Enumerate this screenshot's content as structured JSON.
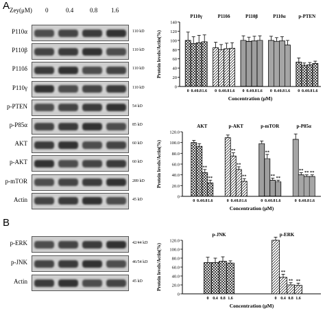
{
  "panels": {
    "A": "A",
    "B": "B"
  },
  "panelA": {
    "zey_label": "Zey(μM)",
    "doses": [
      "0",
      "0.4",
      "0.8",
      "1.6"
    ],
    "blots": [
      {
        "name": "P110α",
        "kd": "110 kD"
      },
      {
        "name": "P110β",
        "kd": "110 kD"
      },
      {
        "name": "P110δ",
        "kd": "110 kD"
      },
      {
        "name": "P110γ",
        "kd": "110 kD"
      },
      {
        "name": "p-PTEN",
        "kd": "54 kD"
      },
      {
        "name": "p-P85α",
        "kd": "85 kD"
      },
      {
        "name": "AKT",
        "kd": "60 kD"
      },
      {
        "name": "p-AKT",
        "kd": "60 kD"
      },
      {
        "name": "p-mTOR",
        "kd": "289 kD"
      },
      {
        "name": "Actin",
        "kd": "45 kD"
      }
    ]
  },
  "panelB": {
    "blots": [
      {
        "name": "p-ERK",
        "kd": "42/44 kD"
      },
      {
        "name": "p-JNK",
        "kd": "46/54 kD"
      },
      {
        "name": "Actin",
        "kd": "45 kD"
      }
    ]
  },
  "colors": {
    "bar": "#ffffff",
    "stroke": "#000000",
    "band_dark": "#1a1a1a",
    "band_bg": "#d9d9d9"
  },
  "chart_data": [
    {
      "type": "bar",
      "ylabel": "Protein levels/Actin(%)",
      "xlabel": "Concentration (μM)",
      "ylim": [
        0,
        140
      ],
      "yticks": [
        0,
        20,
        40,
        60,
        80,
        100,
        120,
        140
      ],
      "groups": [
        "P110γ",
        "P110δ",
        "P110β",
        "P110α",
        "p-PTEN"
      ],
      "categories": [
        "0",
        "0.4",
        "0.8",
        "1.6"
      ],
      "series": [
        {
          "values": [
            100,
            93,
            95,
            97
          ],
          "errors": [
            18,
            15,
            16,
            15
          ]
        },
        {
          "values": [
            84,
            80,
            82,
            83
          ],
          "errors": [
            12,
            11,
            12,
            12
          ]
        },
        {
          "values": [
            100,
            98,
            99,
            100
          ],
          "errors": [
            10,
            9,
            10,
            10
          ]
        },
        {
          "values": [
            100,
            98,
            99,
            90
          ],
          "errors": [
            9,
            8,
            9,
            10
          ]
        },
        {
          "values": [
            53,
            46,
            47,
            50
          ],
          "errors": [
            9,
            5,
            5,
            5
          ]
        }
      ]
    },
    {
      "type": "bar",
      "ylabel": "Protein levels/Actin(%)",
      "xlabel": "Concentration (μM)",
      "ylim": [
        0,
        120
      ],
      "yticks": [
        "0",
        "20.0",
        "40.0",
        "60.0",
        "80.0",
        "100.0",
        "120.0"
      ],
      "groups": [
        "AKT",
        "p-AKT",
        "p-mTOR",
        "p-P85α"
      ],
      "categories": [
        "0",
        "0.4",
        "0.8",
        "1.6"
      ],
      "series": [
        {
          "values": [
            100,
            93,
            44,
            25
          ],
          "errors": [
            4,
            5,
            6,
            5
          ],
          "sig": [
            "",
            "",
            "**",
            "**"
          ]
        },
        {
          "values": [
            109,
            75,
            50,
            28
          ],
          "errors": [
            5,
            6,
            5,
            5
          ],
          "sig": [
            "",
            "**",
            "**",
            "**"
          ]
        },
        {
          "values": [
            98,
            70,
            30,
            27
          ],
          "errors": [
            5,
            8,
            4,
            3
          ],
          "sig": [
            "",
            "**",
            "**",
            "**"
          ]
        },
        {
          "values": [
            106,
            40,
            37,
            37
          ],
          "errors": [
            10,
            4,
            3,
            3
          ],
          "sig": [
            "",
            "**",
            "**",
            "**"
          ]
        }
      ]
    },
    {
      "type": "bar",
      "ylabel": "Protein levels/Actin(%)",
      "xlabel": "Concentration (μM)",
      "ylim": [
        0,
        120
      ],
      "yticks": [
        "0",
        "20.0",
        "40.0",
        "60.0",
        "80.0",
        "100.0",
        "120.0"
      ],
      "groups": [
        "p-JNK",
        "p-ERK"
      ],
      "categories": [
        "0",
        "0.4",
        "0.8",
        "1.6"
      ],
      "series": [
        {
          "values": [
            70,
            70,
            73,
            69
          ],
          "errors": [
            12,
            10,
            10,
            5
          ],
          "sig": [
            "",
            "",
            "",
            ""
          ]
        },
        {
          "values": [
            120,
            37,
            20,
            19
          ],
          "errors": [
            7,
            7,
            5,
            5
          ],
          "sig": [
            "",
            "**",
            "**",
            "**"
          ]
        }
      ]
    }
  ]
}
